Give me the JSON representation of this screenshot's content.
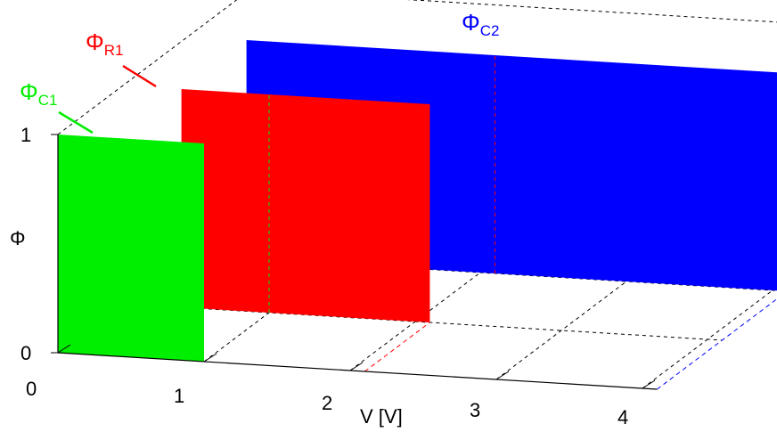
{
  "chart_data": {
    "type": "3d-ribbon",
    "title": "",
    "xlabel": "V [V]",
    "ylabel": "Φ",
    "x_ticks": [
      0,
      1,
      2,
      3,
      4
    ],
    "z_ticks": [
      0,
      1
    ],
    "xlim": [
      0,
      4
    ],
    "zlim": [
      0,
      1
    ],
    "grid": true,
    "series": [
      {
        "name": "Φ",
        "name_sub": "C1",
        "color": "#00ee00",
        "depth": 0,
        "x_range": [
          0,
          1
        ],
        "value": 1
      },
      {
        "name": "Φ",
        "name_sub": "R1",
        "color": "#ff0000",
        "depth": 1,
        "x_range": [
          0.4,
          2.1
        ],
        "value": 1
      },
      {
        "name": "Φ",
        "name_sub": "C2",
        "color": "#0000ff",
        "depth": 2,
        "x_range": [
          0.4,
          4.1
        ],
        "value": 1
      }
    ]
  }
}
